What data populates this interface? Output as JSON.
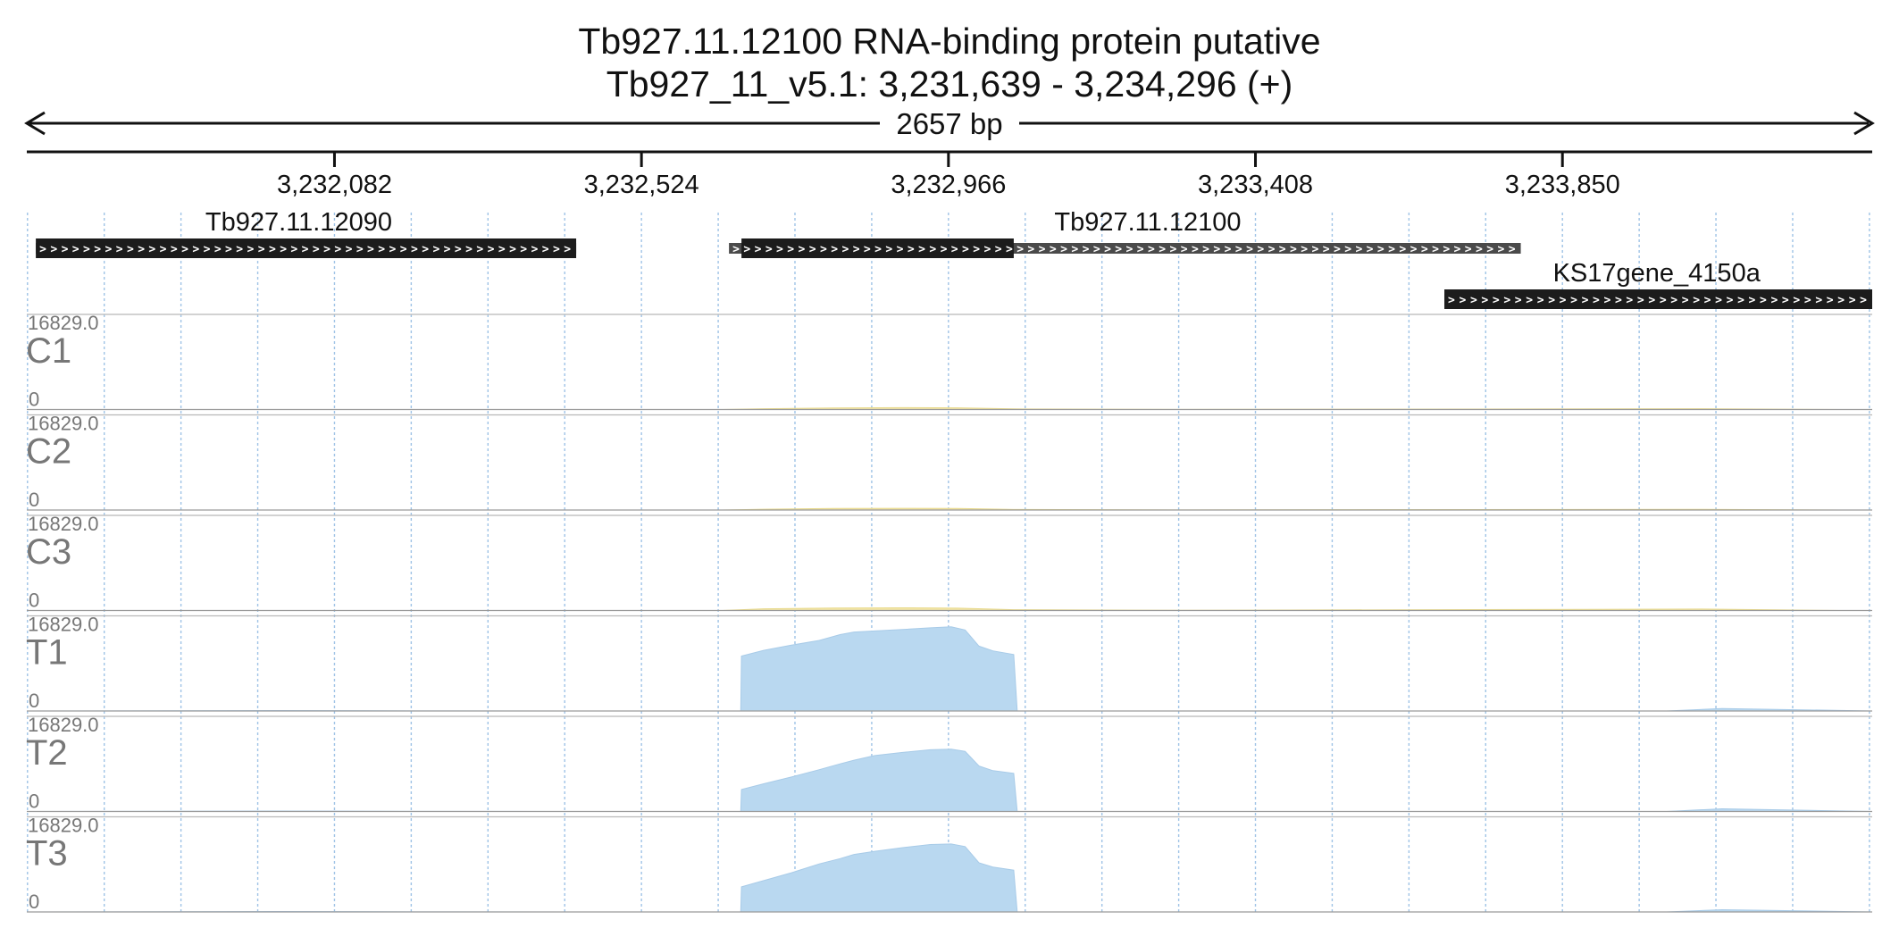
{
  "header": {
    "title": "Tb927.11.12100  RNA-binding protein  putative",
    "location": "Tb927_11_v5.1: 3,231,639 - 3,234,296 (+)",
    "span_label": "2657 bp"
  },
  "colors": {
    "control": "#f3e6a8",
    "treatment": "#b9d8f0",
    "treatment_edge": "#a8cbe8",
    "gene_cds": "#1c1c1c",
    "gene_utr": "#4a4a4a",
    "grid": "#9fc3e6"
  },
  "chart_data": {
    "type": "area",
    "title": "Tb927.11.12100  RNA-binding protein  putative",
    "xlabel": "",
    "ylabel": "",
    "xlim": [
      3231639,
      3234296
    ],
    "x_ticks": [
      3232082,
      3232524,
      3232966,
      3233408,
      3233850
    ],
    "x_tick_labels": [
      "3,232,082",
      "3,232,524",
      "3,232,966",
      "3,233,408",
      "3,233,850"
    ],
    "grid": true,
    "genes": [
      {
        "name": "Tb927.11.12090",
        "strand": "+",
        "row": 0,
        "cds": [
          3231652,
          3232430
        ],
        "utr": [
          3231652,
          3232430
        ]
      },
      {
        "name": "Tb927.11.12100",
        "strand": "+",
        "row": 0,
        "cds": [
          3232668,
          3233060
        ],
        "utr": [
          3232650,
          3233790
        ]
      },
      {
        "name": "KS17gene_4150a",
        "strand": "+",
        "row": 1,
        "cds": [
          3233680,
          3234296
        ],
        "utr": [
          3233680,
          3234296
        ]
      }
    ],
    "tracks": [
      {
        "name": "C1",
        "group": "control",
        "ymax": "16829.0",
        "ymin": "0",
        "x": [
          3231639,
          3232150,
          3232640,
          3232700,
          3232800,
          3232900,
          3232980,
          3233060,
          3233300,
          3234050,
          3234250,
          3234296
        ],
        "y": [
          0,
          0,
          0,
          150,
          310,
          360,
          330,
          120,
          20,
          160,
          0,
          0
        ]
      },
      {
        "name": "C2",
        "group": "control",
        "ymax": "16829.0",
        "ymin": "0",
        "x": [
          3231639,
          3232150,
          3232640,
          3232700,
          3232800,
          3232900,
          3232980,
          3233060,
          3233300,
          3234050,
          3234250,
          3234296
        ],
        "y": [
          0,
          0,
          0,
          150,
          290,
          330,
          300,
          110,
          20,
          140,
          0,
          0
        ]
      },
      {
        "name": "C3",
        "group": "control",
        "ymax": "16829.0",
        "ymin": "0",
        "x": [
          3231639,
          3232150,
          3232640,
          3232700,
          3232800,
          3232900,
          3232980,
          3233060,
          3233300,
          3234050,
          3234250,
          3234296
        ],
        "y": [
          0,
          0,
          0,
          330,
          480,
          510,
          450,
          160,
          40,
          280,
          0,
          0
        ]
      },
      {
        "name": "T1",
        "group": "treatment",
        "ymax": "16829.0",
        "ymin": "0",
        "x": [
          3231639,
          3232000,
          3232200,
          3232667,
          3232668,
          3232700,
          3232740,
          3232780,
          3232810,
          3232830,
          3232860,
          3232900,
          3232940,
          3232970,
          3232990,
          3233010,
          3233030,
          3233060,
          3233065,
          3234000,
          3234080,
          3234296
        ],
        "y": [
          0,
          80,
          20,
          0,
          10500,
          11600,
          12600,
          13500,
          14600,
          15100,
          15300,
          15600,
          15900,
          16100,
          15500,
          12400,
          11500,
          10800,
          0,
          0,
          480,
          0
        ]
      },
      {
        "name": "T2",
        "group": "treatment",
        "ymax": "16829.0",
        "ymin": "0",
        "x": [
          3231639,
          3232000,
          3232200,
          3232667,
          3232668,
          3232700,
          3232740,
          3232780,
          3232810,
          3232830,
          3232860,
          3232900,
          3232940,
          3232970,
          3232990,
          3233010,
          3233030,
          3233060,
          3233065,
          3234000,
          3234080,
          3234296
        ],
        "y": [
          0,
          80,
          20,
          0,
          4200,
          5300,
          6600,
          8000,
          9100,
          9800,
          10700,
          11300,
          11800,
          11900,
          11500,
          8700,
          7800,
          7300,
          0,
          0,
          520,
          0
        ]
      },
      {
        "name": "T3",
        "group": "treatment",
        "ymax": "16829.0",
        "ymin": "0",
        "x": [
          3231639,
          3232000,
          3232200,
          3232667,
          3232668,
          3232700,
          3232740,
          3232780,
          3232810,
          3232830,
          3232860,
          3232900,
          3232940,
          3232970,
          3232990,
          3233010,
          3233030,
          3233060,
          3233065,
          3234000,
          3234080,
          3234296
        ],
        "y": [
          0,
          80,
          20,
          0,
          4800,
          6000,
          7500,
          9200,
          10200,
          11000,
          11600,
          12300,
          12900,
          13000,
          12500,
          9400,
          8600,
          8000,
          0,
          0,
          430,
          0
        ]
      }
    ]
  }
}
